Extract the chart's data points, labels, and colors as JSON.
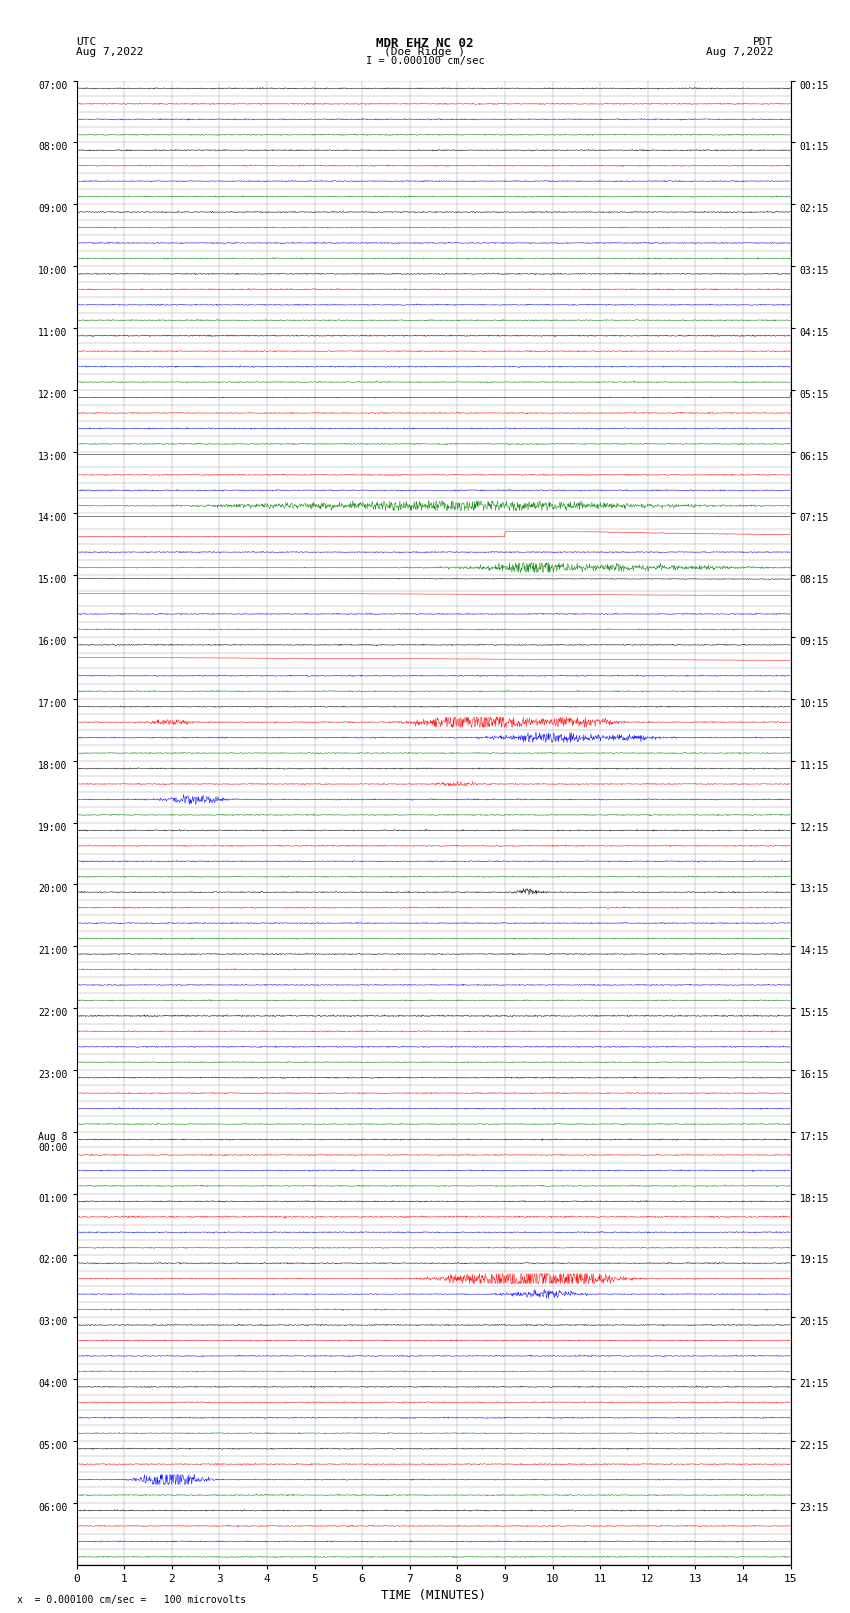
{
  "title_line1": "MDR EHZ NC 02",
  "title_line2": "(Doe Ridge )",
  "scale_label": "I = 0.000100 cm/sec",
  "left_label_top": "UTC",
  "left_label_date": "Aug 7,2022",
  "right_label_top": "PDT",
  "right_label_date": "Aug 7,2022",
  "bottom_label": "TIME (MINUTES)",
  "scale_note": "x  = 0.000100 cm/sec =   100 microvolts",
  "xlabel_ticks": [
    0,
    1,
    2,
    3,
    4,
    5,
    6,
    7,
    8,
    9,
    10,
    11,
    12,
    13,
    14,
    15
  ],
  "utc_labels": [
    [
      "07:00",
      0
    ],
    [
      "08:00",
      4
    ],
    [
      "09:00",
      8
    ],
    [
      "10:00",
      12
    ],
    [
      "11:00",
      16
    ],
    [
      "12:00",
      20
    ],
    [
      "13:00",
      24
    ],
    [
      "14:00",
      28
    ],
    [
      "15:00",
      32
    ],
    [
      "16:00",
      36
    ],
    [
      "17:00",
      40
    ],
    [
      "18:00",
      44
    ],
    [
      "19:00",
      48
    ],
    [
      "20:00",
      52
    ],
    [
      "21:00",
      56
    ],
    [
      "22:00",
      60
    ],
    [
      "23:00",
      64
    ],
    [
      "Aug 8\n00:00",
      68
    ],
    [
      "01:00",
      72
    ],
    [
      "02:00",
      76
    ],
    [
      "03:00",
      80
    ],
    [
      "04:00",
      84
    ],
    [
      "05:00",
      88
    ],
    [
      "06:00",
      92
    ]
  ],
  "pdt_labels": [
    [
      "00:15",
      0
    ],
    [
      "01:15",
      4
    ],
    [
      "02:15",
      8
    ],
    [
      "03:15",
      12
    ],
    [
      "04:15",
      16
    ],
    [
      "05:15",
      20
    ],
    [
      "06:15",
      24
    ],
    [
      "07:15",
      28
    ],
    [
      "08:15",
      32
    ],
    [
      "09:15",
      36
    ],
    [
      "10:15",
      40
    ],
    [
      "11:15",
      44
    ],
    [
      "12:15",
      48
    ],
    [
      "13:15",
      52
    ],
    [
      "14:15",
      56
    ],
    [
      "15:15",
      60
    ],
    [
      "16:15",
      64
    ],
    [
      "17:15",
      68
    ],
    [
      "18:15",
      72
    ],
    [
      "19:15",
      76
    ],
    [
      "20:15",
      80
    ],
    [
      "21:15",
      84
    ],
    [
      "22:15",
      88
    ],
    [
      "23:15",
      92
    ]
  ],
  "num_rows": 96,
  "colors_cycle": [
    "black",
    "red",
    "blue",
    "green"
  ],
  "background_color": "white",
  "grid_color": "#999999",
  "fig_width": 8.5,
  "fig_height": 16.13,
  "dpi": 100
}
